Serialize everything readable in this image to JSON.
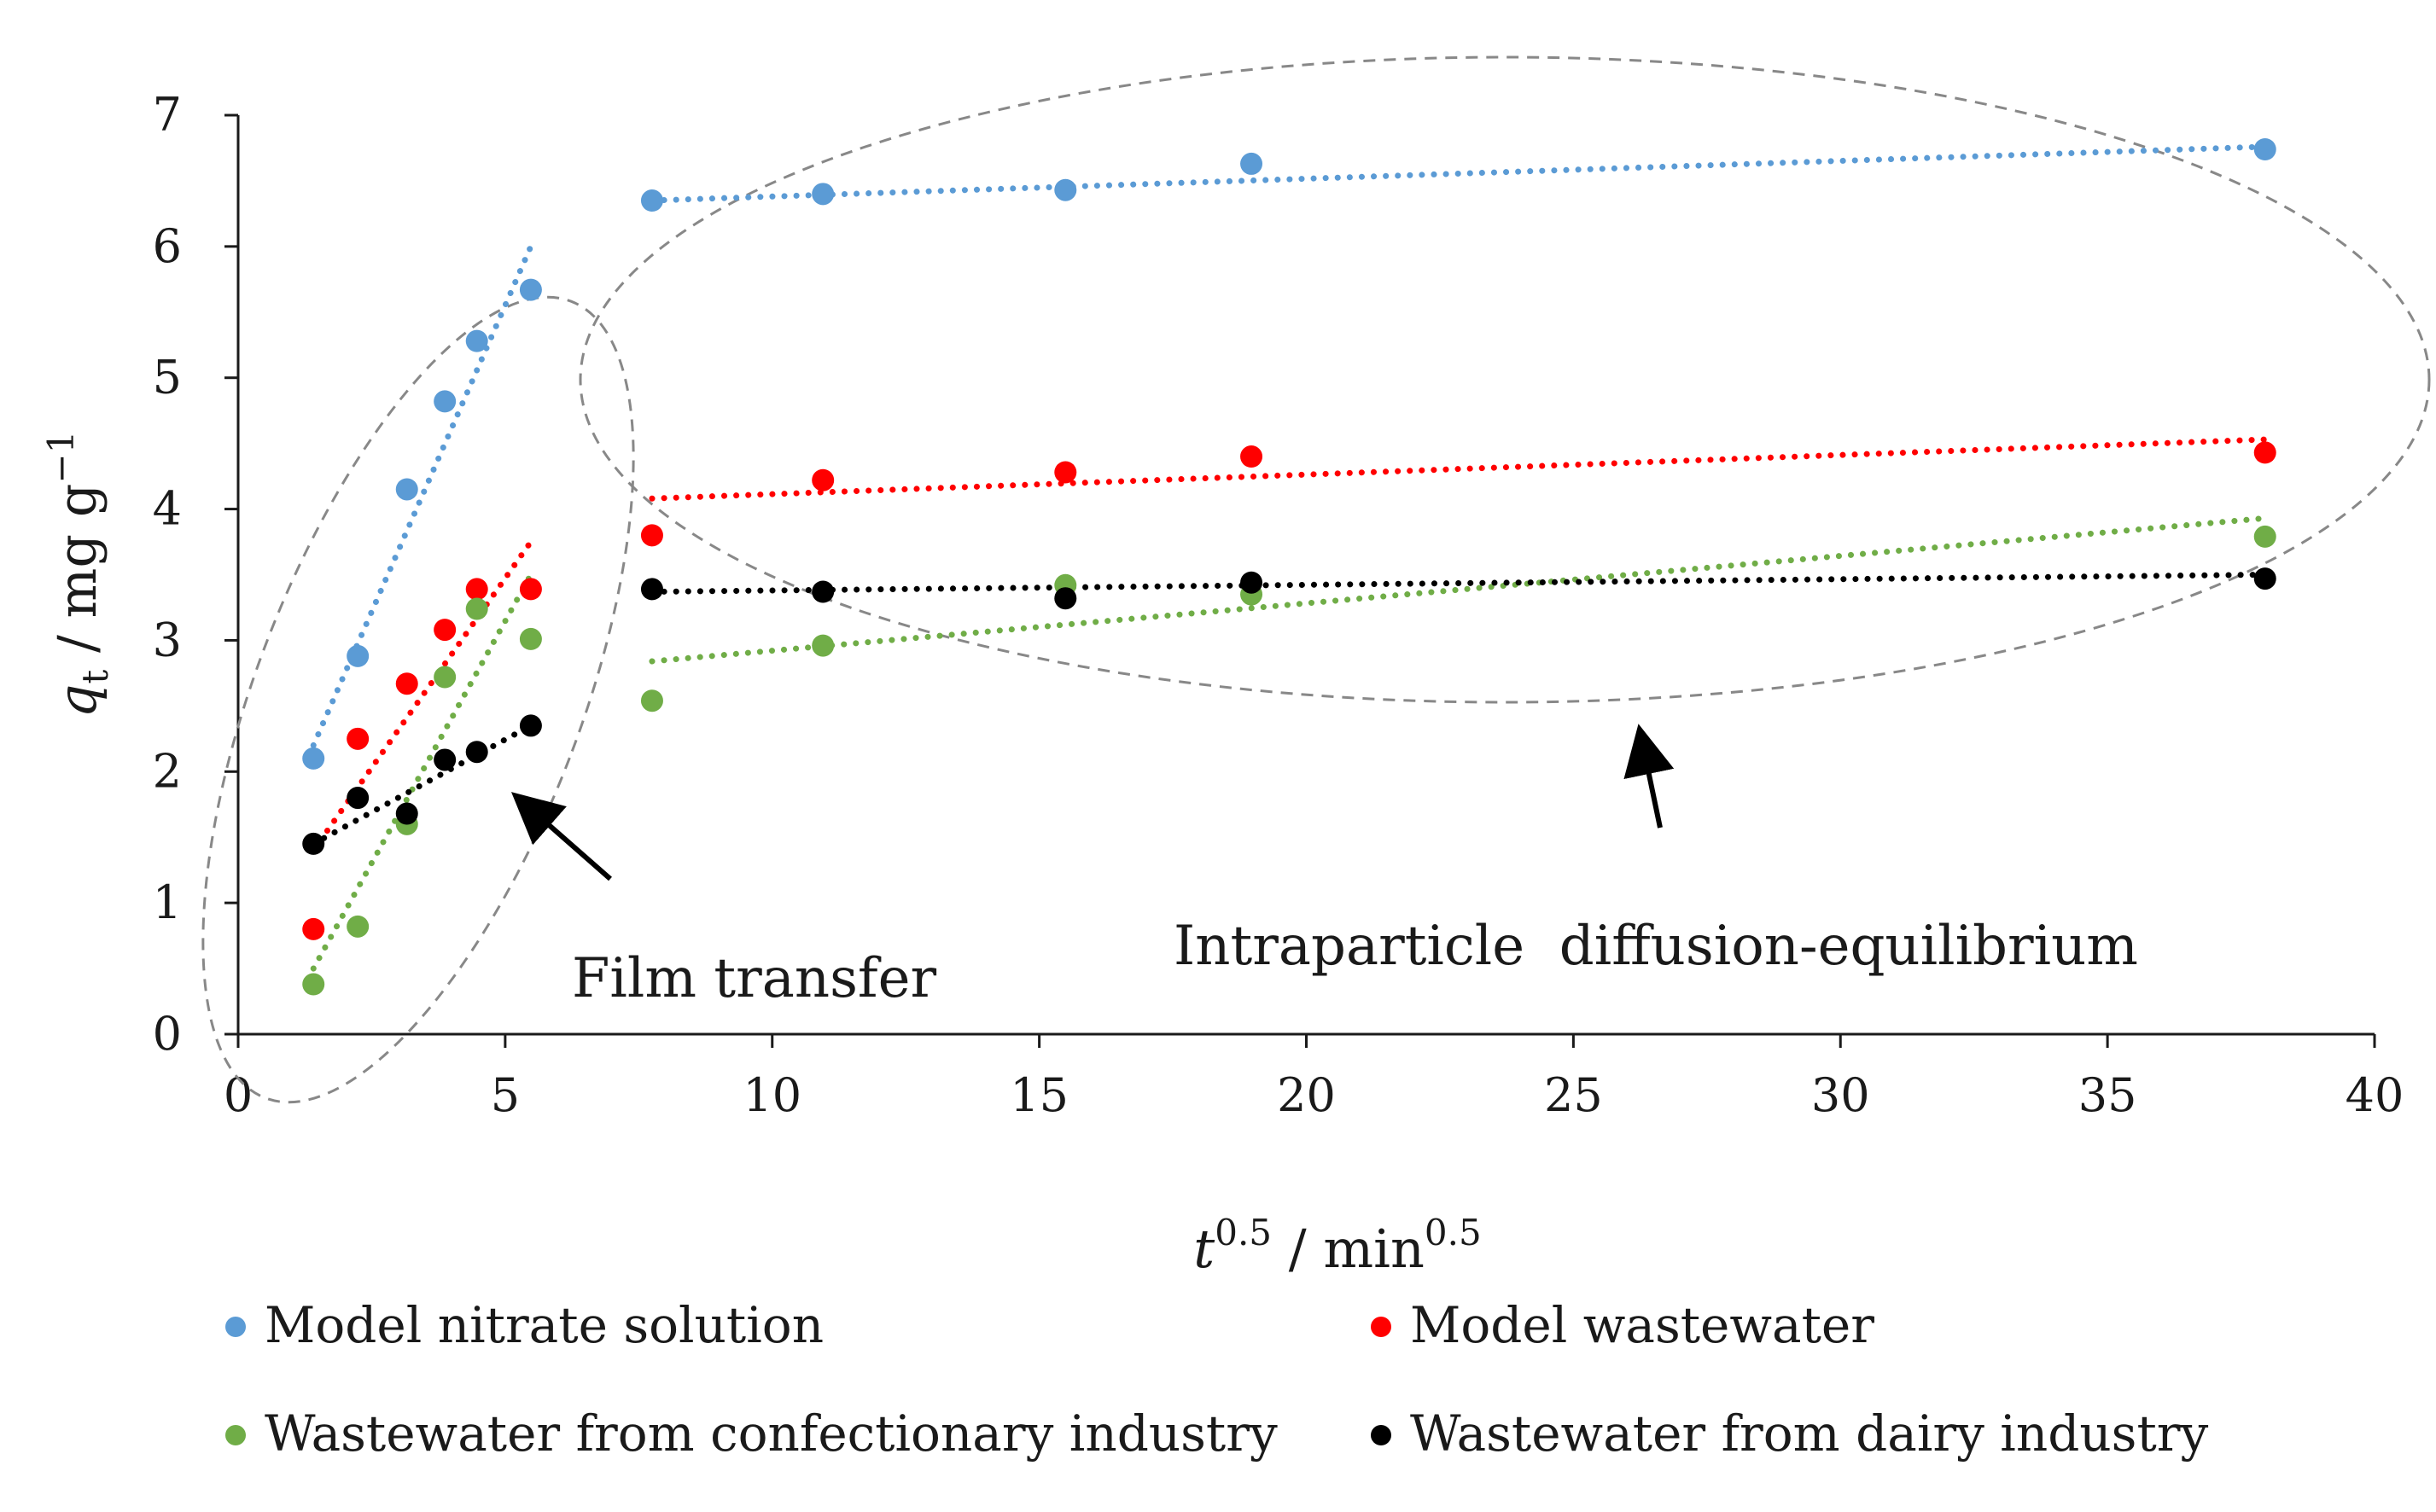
{
  "chart_data": {
    "type": "scatter",
    "title": "",
    "xlabel": {
      "base": "t",
      "sup": "0.5",
      "sep": " / ",
      "unit": "min",
      "unit_sup": "0.5"
    },
    "ylabel": {
      "base": "q",
      "sub": "t",
      "sep": " / ",
      "unit": "mg g",
      "unit_sup": "−1"
    },
    "xlim": [
      0,
      40
    ],
    "ylim": [
      0,
      7
    ],
    "x_ticks": [
      "0",
      "5",
      "10",
      "15",
      "20",
      "25",
      "30",
      "35",
      "40"
    ],
    "y_ticks": [
      "0",
      "1",
      "2",
      "3",
      "4",
      "5",
      "6",
      "7"
    ],
    "grid": false,
    "legend_position": "bottom",
    "series": [
      {
        "name": "Model nitrate solution",
        "color": "#5B9BD5",
        "x": [
          1.41,
          2.24,
          3.16,
          3.87,
          4.47,
          5.48,
          7.75,
          10.95,
          15.49,
          18.97,
          37.95
        ],
        "y": [
          2.1,
          2.88,
          4.15,
          4.82,
          5.28,
          5.67,
          6.35,
          6.4,
          6.43,
          6.63,
          6.74
        ],
        "trend_film": [
          [
            1.41,
            2.2
          ],
          [
            5.48,
            6.0
          ]
        ],
        "trend_intra": [
          [
            7.75,
            6.35
          ],
          [
            37.95,
            6.76
          ]
        ]
      },
      {
        "name": "Model wastewater",
        "color": "#FF0000",
        "x": [
          1.41,
          2.24,
          3.16,
          3.87,
          4.47,
          5.48,
          7.75,
          10.95,
          15.49,
          18.97,
          37.95
        ],
        "y": [
          0.8,
          2.25,
          2.67,
          3.08,
          3.39,
          3.39,
          3.8,
          4.22,
          4.28,
          4.4,
          4.43
        ],
        "trend_film": [
          [
            1.41,
            1.4
          ],
          [
            5.48,
            3.75
          ]
        ],
        "trend_intra": [
          [
            7.75,
            4.08
          ],
          [
            37.95,
            4.53
          ]
        ]
      },
      {
        "name": "Wastewater from confectionary industry",
        "color": "#70AD47",
        "x": [
          1.41,
          2.24,
          3.16,
          3.87,
          4.47,
          5.48,
          7.75,
          10.95,
          15.49,
          18.97,
          37.95
        ],
        "y": [
          0.38,
          0.82,
          1.6,
          2.72,
          3.24,
          3.01,
          2.54,
          2.96,
          3.42,
          3.35,
          3.79
        ],
        "trend_film": [
          [
            1.41,
            0.5
          ],
          [
            5.48,
            3.5
          ]
        ],
        "trend_intra": [
          [
            7.75,
            2.84
          ],
          [
            37.95,
            3.93
          ]
        ]
      },
      {
        "name": "Wastewater from dairy industry",
        "color": "#000000",
        "x": [
          1.41,
          2.24,
          3.16,
          3.87,
          4.47,
          5.48,
          7.75,
          10.95,
          15.49,
          18.97,
          37.95
        ],
        "y": [
          1.45,
          1.8,
          1.68,
          2.09,
          2.15,
          2.35,
          3.39,
          3.37,
          3.32,
          3.44,
          3.47
        ],
        "trend_film": [
          [
            1.41,
            1.45
          ],
          [
            5.48,
            2.35
          ]
        ],
        "trend_intra": [
          [
            7.75,
            3.37
          ],
          [
            37.95,
            3.5
          ]
        ]
      }
    ],
    "annotations": {
      "film": "Film transfer",
      "intra": "Intraparticle  diffusion-equilibrium"
    }
  }
}
